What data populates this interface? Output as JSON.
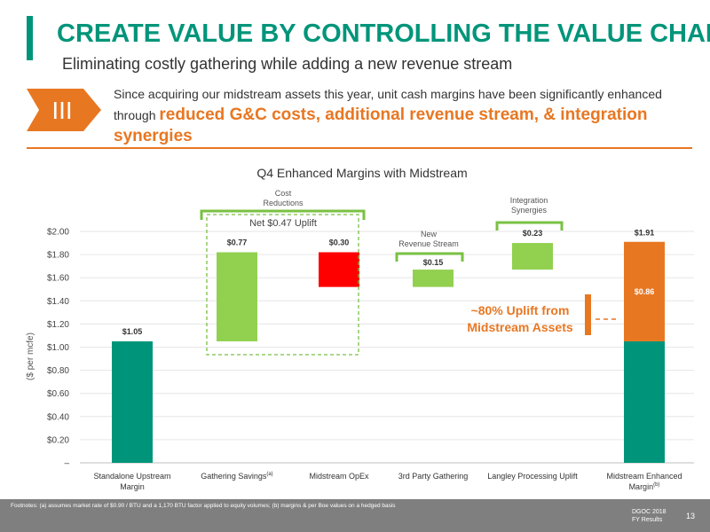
{
  "header": {
    "title": "CREATE VALUE BY CONTROLLING THE VALUE CHAIN",
    "subtitle": "Eliminating costly gathering while adding a new revenue stream"
  },
  "badge": {
    "label": "III"
  },
  "callout": {
    "text_1": "Since acquiring our midstream assets this year, unit cash margins have been significantly enhanced through ",
    "highlight": "reduced G&C costs, additional revenue stream, & integration synergies"
  },
  "chart_data": {
    "type": "bar",
    "subtype": "waterfall",
    "title": "Q4 Enhanced Margins with Midstream",
    "ylabel": "($ per mcfe)",
    "ylim": [
      0,
      2.0
    ],
    "yticks": [
      "–",
      "$0.20",
      "$0.40",
      "$0.60",
      "$0.80",
      "$1.00",
      "$1.20",
      "$1.40",
      "$1.60",
      "$1.80",
      "$2.00"
    ],
    "categories": [
      {
        "label": "Standalone Upstream",
        "label2": "Margin",
        "sup": ""
      },
      {
        "label": "Gathering Savings",
        "label2": "",
        "sup": "(a)"
      },
      {
        "label": "Midstream OpEx",
        "label2": "",
        "sup": ""
      },
      {
        "label": "3rd Party Gathering",
        "label2": "",
        "sup": ""
      },
      {
        "label": "Langley Processing Uplift",
        "label2": "",
        "sup": ""
      },
      {
        "label": "Midstream Enhanced",
        "label2": "Margin",
        "sup": "(b)"
      }
    ],
    "bars": [
      {
        "start": 0,
        "end": 1.05,
        "label": "$1.05",
        "color": "#00957A",
        "label_pos": "above"
      },
      {
        "start": 1.05,
        "end": 1.82,
        "label": "$0.77",
        "color": "#92D050",
        "label_pos": "above"
      },
      {
        "start": 1.82,
        "end": 1.52,
        "label": "$0.30",
        "color": "#FF0000",
        "label_pos": "above"
      },
      {
        "start": 1.52,
        "end": 1.67,
        "label": "$0.15",
        "color": "#92D050",
        "label_pos": "inside-top"
      },
      {
        "start": 1.67,
        "end": 1.9,
        "label": "$0.23",
        "color": "#92D050",
        "label_pos": "above"
      },
      {
        "stack": [
          {
            "start": 0,
            "end": 1.05,
            "color": "#00957A"
          },
          {
            "start": 1.05,
            "end": 1.91,
            "color": "#E87722",
            "label": "$0.86"
          }
        ],
        "total_label": "$1.91"
      }
    ],
    "annotations": {
      "cost_reductions": "Cost\nReductions",
      "net_uplift": "Net $0.47 Uplift",
      "new_revenue": "New\nRevenue Stream",
      "integration": "Integration\nSynergies",
      "uplift_1": "~80% Uplift from",
      "uplift_2": "Midstream Assets"
    },
    "colors": {
      "upstream": "#00957A",
      "savings": "#92D050",
      "opex": "#FF0000",
      "midstream": "#E87722"
    }
  },
  "footer": {
    "footnote": "Footnotes: (a) assumes market rate of $0.90 / BTU and a 1,170 BTU factor applied to equity volumes; (b) margins & per Boe values on a hedged basis",
    "brand_1": "DGOC 2018",
    "brand_2": "FY Results",
    "page": "13"
  }
}
